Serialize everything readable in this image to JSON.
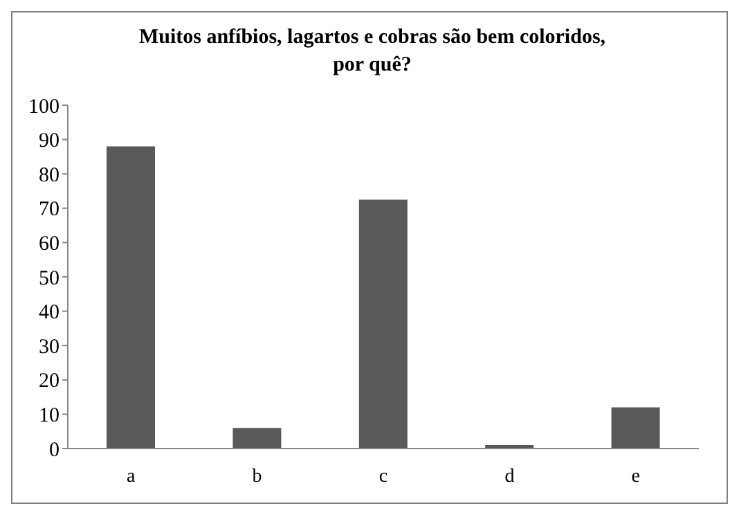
{
  "chart_data": {
    "type": "bar",
    "title": "Muitos anfíbios, lagartos e cobras são bem coloridos, por quê?",
    "categories": [
      "a",
      "b",
      "c",
      "d",
      "e"
    ],
    "values": [
      88,
      6,
      72.5,
      1,
      12
    ],
    "color": "#595959",
    "ylim": [
      0,
      100
    ],
    "yticks": [
      0,
      10,
      20,
      30,
      40,
      50,
      60,
      70,
      80,
      90,
      100
    ],
    "grid": false
  }
}
